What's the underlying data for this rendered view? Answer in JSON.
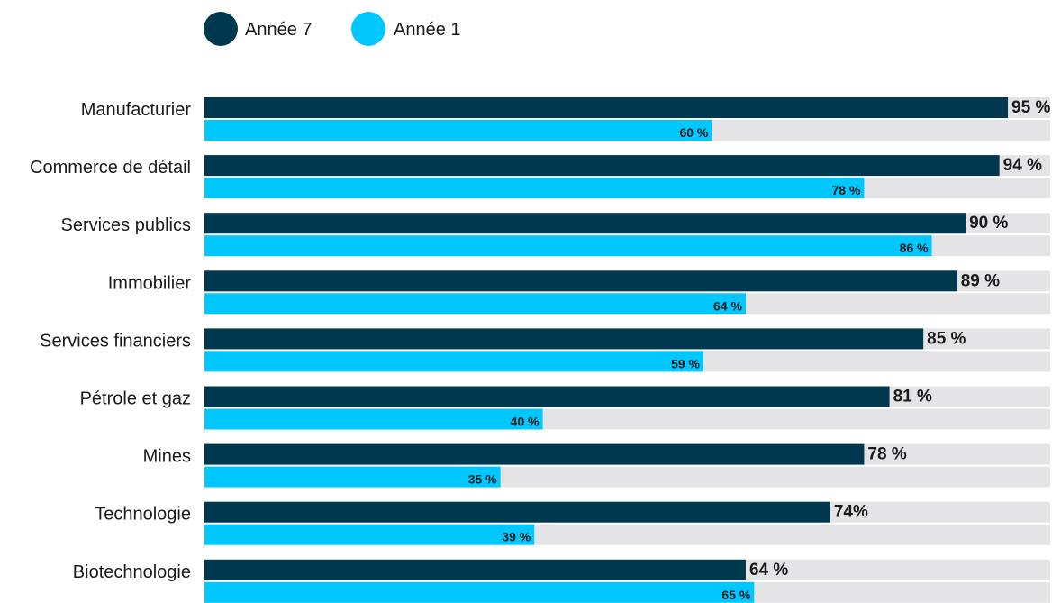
{
  "chart_data": {
    "type": "bar",
    "orientation": "horizontal",
    "categories": [
      "Manufacturier",
      "Commerce de détail",
      "Services publics",
      "Immobilier",
      "Services financiers",
      "Pétrole et gaz",
      "Mines",
      "Technologie",
      "Biotechnologie"
    ],
    "series": [
      {
        "name": "Année 7",
        "color": "#00394f",
        "values": [
          95,
          94,
          90,
          89,
          85,
          81,
          78,
          74,
          64
        ],
        "labels": [
          "95 %",
          "94 %",
          "90 %",
          "89 %",
          "85 %",
          "81 %",
          "78 %",
          "74%",
          "64 %"
        ]
      },
      {
        "name": "Année 1",
        "color": "#00c8ff",
        "values": [
          60,
          78,
          86,
          64,
          59,
          40,
          35,
          39,
          65
        ],
        "labels": [
          "60 %",
          "78 %",
          "86 %",
          "64 %",
          "59 %",
          "40 %",
          "35 %",
          "39 %",
          "65 %"
        ]
      }
    ],
    "xlim": [
      0,
      100
    ],
    "track_color": "#e4e4e6",
    "legend_position": "top-left",
    "grid": false,
    "title": "",
    "xlabel": "",
    "ylabel": ""
  }
}
